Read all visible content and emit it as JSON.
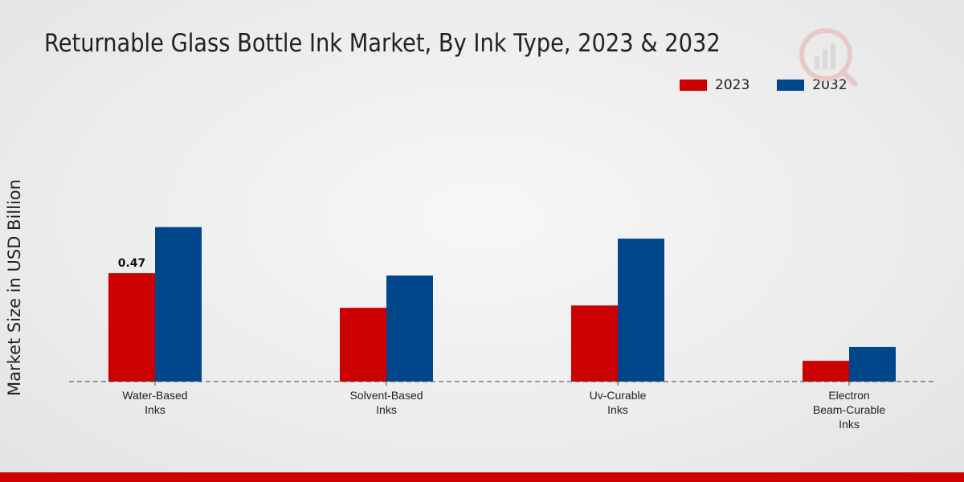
{
  "chart_data": {
    "type": "bar",
    "title": "Returnable Glass Bottle Ink Market, By Ink Type, 2023 & 2032",
    "ylabel": "Market Size in USD Billion",
    "xlabel": "",
    "categories": [
      "Water-Based Inks",
      "Solvent-Based Inks",
      "Uv-Curable Inks",
      "Electron Beam-Curable Inks"
    ],
    "series": [
      {
        "name": "2023",
        "color": "#cc0000",
        "values": [
          0.47,
          0.32,
          0.33,
          0.09
        ]
      },
      {
        "name": "2032",
        "color": "#00468b",
        "values": [
          0.67,
          0.46,
          0.62,
          0.15
        ]
      }
    ],
    "data_labels": [
      {
        "series": 0,
        "index": 0,
        "text": "0.47"
      }
    ],
    "ylim": [
      0,
      1.0
    ],
    "grid": false,
    "legend_position": "top-right"
  }
}
